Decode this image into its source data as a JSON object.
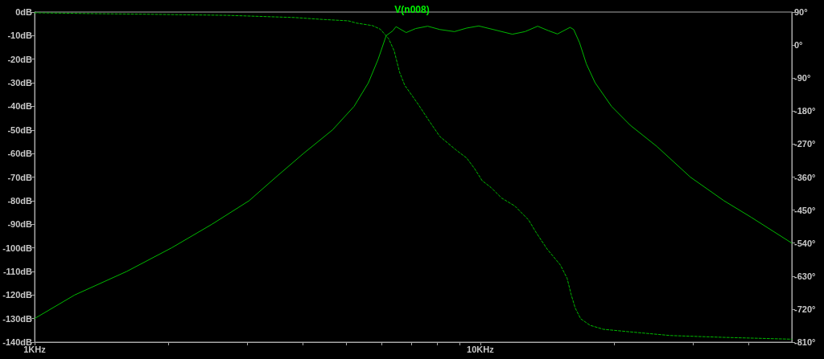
{
  "chart_data": {
    "type": "line",
    "title": "V(n008)",
    "log": "x",
    "grid": false,
    "marker": "none",
    "line_style": "solid",
    "xlim": [
      1,
      50
    ],
    "xticks": [
      {
        "value": 1,
        "label": "1KHz"
      },
      {
        "value": 2,
        "label": null
      },
      {
        "value": 3,
        "label": null
      },
      {
        "value": 4,
        "label": null
      },
      {
        "value": 5,
        "label": null
      },
      {
        "value": 6,
        "label": null
      },
      {
        "value": 7,
        "label": null
      },
      {
        "value": 8,
        "label": null
      },
      {
        "value": 9,
        "label": null
      },
      {
        "value": 10,
        "label": "10KHz"
      },
      {
        "value": 20,
        "label": null
      },
      {
        "value": 30,
        "label": null
      },
      {
        "value": 40,
        "label": null
      }
    ],
    "ylim": [
      -140,
      0
    ],
    "yticks": [
      {
        "value": 0,
        "label": "0dB"
      },
      {
        "value": -10,
        "label": "-10dB"
      },
      {
        "value": -20,
        "label": "-20dB"
      },
      {
        "value": -30,
        "label": "-30dB"
      },
      {
        "value": -40,
        "label": "-40dB"
      },
      {
        "value": -50,
        "label": "-50dB"
      },
      {
        "value": -60,
        "label": "-60dB"
      },
      {
        "value": -70,
        "label": "-70dB"
      },
      {
        "value": -80,
        "label": "-80dB"
      },
      {
        "value": -90,
        "label": "-90dB"
      },
      {
        "value": -100,
        "label": "-100dB"
      },
      {
        "value": -110,
        "label": "-110dB"
      },
      {
        "value": -120,
        "label": "-120dB"
      },
      {
        "value": -130,
        "label": "-130dB"
      },
      {
        "value": -140,
        "label": "-140dB"
      }
    ],
    "y2lim": [
      -810,
      90
    ],
    "y2ticks": [
      {
        "value": 90,
        "label": "90°"
      },
      {
        "value": 0,
        "label": "0°"
      },
      {
        "value": -90,
        "label": "-90°"
      },
      {
        "value": -180,
        "label": "-180°"
      },
      {
        "value": -270,
        "label": "-270°"
      },
      {
        "value": -360,
        "label": "-360°"
      },
      {
        "value": -450,
        "label": "-450°"
      },
      {
        "value": -540,
        "label": "-540°"
      },
      {
        "value": -630,
        "label": "-630°"
      },
      {
        "value": -720,
        "label": "-720°"
      },
      {
        "value": -810,
        "label": "-810°"
      }
    ],
    "series": [
      {
        "color": "#00b800",
        "x": [
          1,
          1.23,
          1.61,
          2.03,
          2.5,
          3.03,
          3.48,
          4.01,
          4.66,
          5.21,
          5.61,
          5.9,
          6.15,
          6.36,
          6.47,
          6.82,
          7.16,
          7.62,
          8.11,
          8.75,
          9.32,
          9.92,
          10.69,
          11.8,
          12.6,
          13.45,
          14.22,
          14.9,
          15.9,
          16.2,
          16.7,
          17.3,
          18.1,
          19.7,
          21.7,
          24.9,
          29.6,
          35.2,
          40.5,
          50
        ],
        "values": [
          -130,
          -120,
          -110,
          -100,
          -90,
          -80,
          -70,
          -60,
          -50,
          -40,
          -30,
          -20,
          -10,
          -8,
          -6.2,
          -8.7,
          -7.0,
          -6.0,
          -7.4,
          -8.3,
          -6.8,
          -5.9,
          -7.4,
          -9.4,
          -8.3,
          -6.0,
          -7.9,
          -9.3,
          -6.5,
          -7.4,
          -13,
          -22,
          -30,
          -40,
          -48,
          -57,
          -70,
          -80,
          -87,
          -98
        ]
      },
      {
        "color": "#00b800",
        "axis": "y2",
        "line_style": "dashed",
        "x": [
          1,
          1.3,
          1.79,
          2.71,
          3.84,
          4.41,
          5.06,
          5.27,
          5.73,
          5.97,
          6.23,
          6.41,
          6.59,
          6.77,
          7.05,
          7.26,
          7.67,
          8.11,
          8.82,
          9.32,
          9.71,
          10.1,
          10.56,
          11.16,
          11.96,
          12.82,
          13.36,
          14.12,
          15.13,
          15.66,
          15.99,
          16.33,
          16.79,
          17.62,
          18.89,
          21.69,
          26.71,
          35.23,
          50
        ],
        "values": [
          88,
          86,
          84,
          81,
          75,
          70,
          66,
          60,
          53,
          43,
          17,
          -16,
          -74,
          -110,
          -140,
          -162,
          -206,
          -249,
          -286,
          -308,
          -337,
          -370,
          -388,
          -417,
          -439,
          -476,
          -512,
          -556,
          -600,
          -636,
          -680,
          -717,
          -746,
          -764,
          -775,
          -782,
          -792,
          -797,
          -802
        ]
      }
    ]
  }
}
